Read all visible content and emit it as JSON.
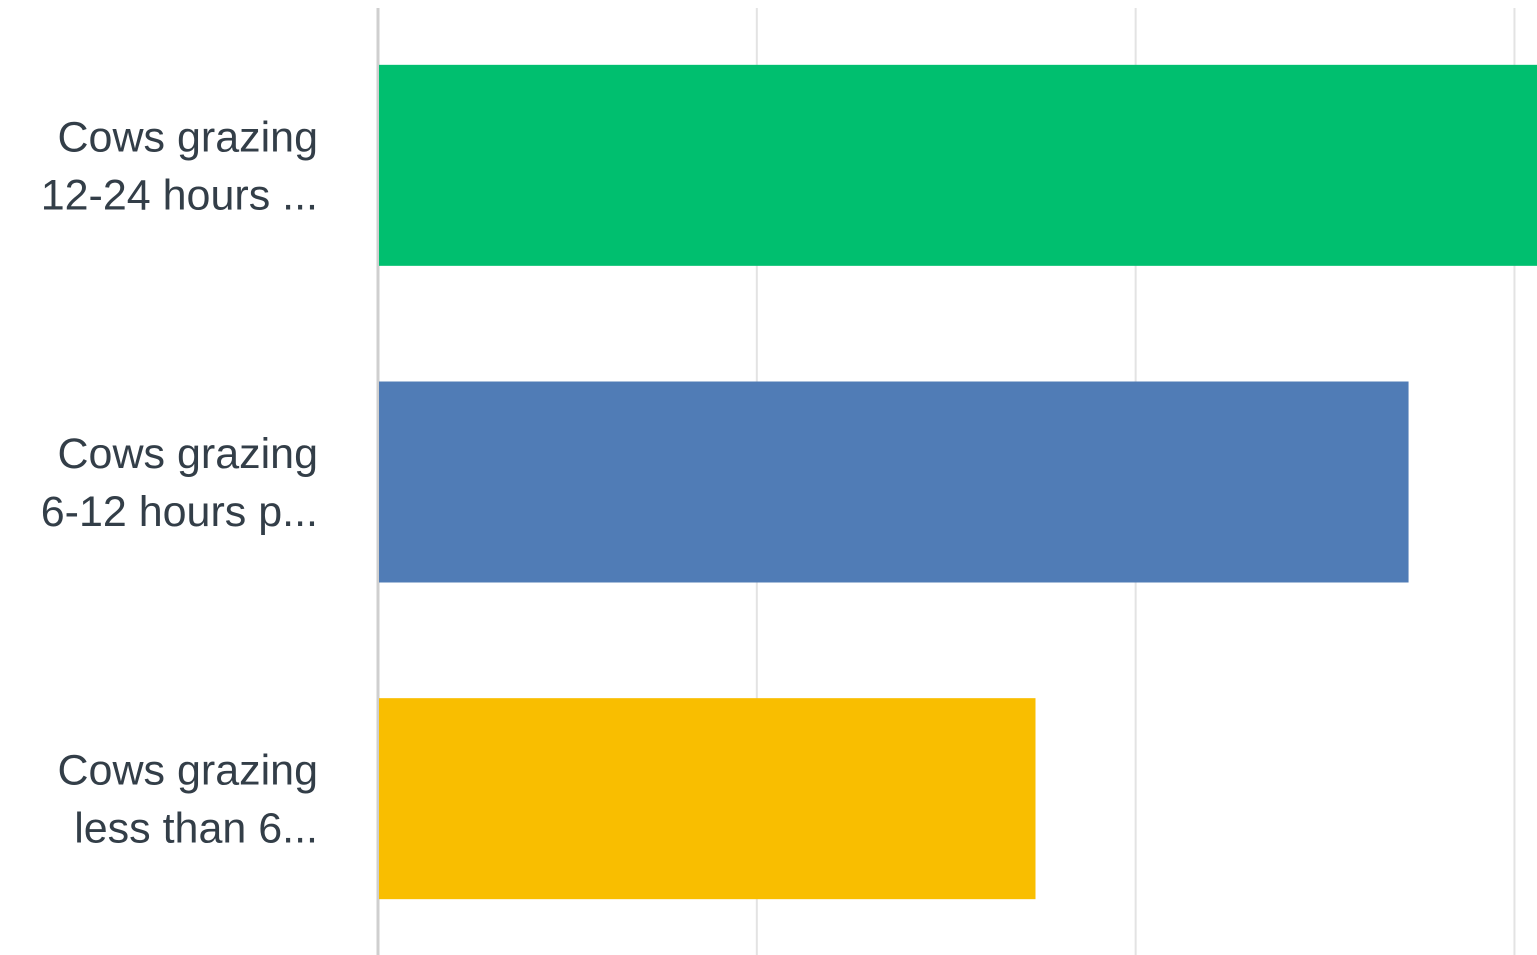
{
  "chart_data": {
    "type": "bar",
    "orientation": "horizontal",
    "categories": [
      [
        "Cows grazing",
        "12-24 hours ..."
      ],
      [
        "Cows grazing",
        "6-12 hours p..."
      ],
      [
        "Cows grazing",
        "less than 6..."
      ]
    ],
    "values": [
      0.4629,
      0.4116,
      0.2626
    ],
    "xlim": [
      0,
      0.4629
    ],
    "gridlines": [
      0,
      0.1513,
      0.3026,
      0.4539
    ],
    "grid": true,
    "legend": "none",
    "colors": [
      "#00bf6f",
      "#507cb6",
      "#f9be00"
    ],
    "gridline_color": "#e3e3e3",
    "axis_color": "#cfcfcf",
    "label_color": "#333e48"
  }
}
